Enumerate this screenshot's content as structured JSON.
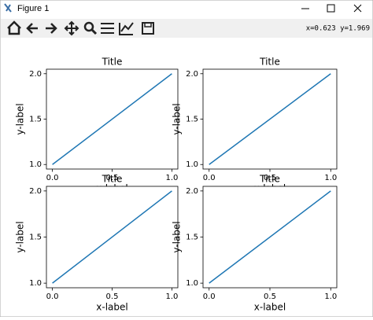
{
  "window": {
    "title": "Figure 1",
    "coordinates": "x=0.623  y=1.969"
  },
  "chart_data": [
    {
      "type": "line",
      "title": "Title",
      "x_label": "x-label",
      "y_label": "y-label",
      "x": [
        0,
        1
      ],
      "values": [
        1,
        2
      ],
      "color": "#1f77b4",
      "xlim": [
        -0.05,
        1.05
      ],
      "ylim": [
        0.95,
        2.05
      ],
      "xticks": [
        {
          "value": 0,
          "label": "0.0"
        },
        {
          "value": 0.5,
          "label": "0.5"
        },
        {
          "value": 1,
          "label": "1.0"
        }
      ],
      "yticks": [
        {
          "value": 1,
          "label": "1.0"
        },
        {
          "value": 1.5,
          "label": "1.5"
        },
        {
          "value": 2,
          "label": "2.0"
        }
      ]
    },
    {
      "type": "line",
      "title": "Title",
      "x_label": "x-label",
      "y_label": "y-label",
      "x": [
        0,
        1
      ],
      "values": [
        1,
        2
      ],
      "color": "#1f77b4",
      "xlim": [
        -0.05,
        1.05
      ],
      "ylim": [
        0.95,
        2.05
      ],
      "xticks": [
        {
          "value": 0,
          "label": "0.0"
        },
        {
          "value": 0.5,
          "label": "0.5"
        },
        {
          "value": 1,
          "label": "1.0"
        }
      ],
      "yticks": [
        {
          "value": 1,
          "label": "1.0"
        },
        {
          "value": 1.5,
          "label": "1.5"
        },
        {
          "value": 2,
          "label": "2.0"
        }
      ]
    },
    {
      "type": "line",
      "title": "Title",
      "x_label": "x-label",
      "y_label": "y-label",
      "x": [
        0,
        1
      ],
      "values": [
        1,
        2
      ],
      "color": "#1f77b4",
      "xlim": [
        -0.05,
        1.05
      ],
      "ylim": [
        0.95,
        2.05
      ],
      "xticks": [
        {
          "value": 0,
          "label": "0.0"
        },
        {
          "value": 0.5,
          "label": "0.5"
        },
        {
          "value": 1,
          "label": "1.0"
        }
      ],
      "yticks": [
        {
          "value": 1,
          "label": "1.0"
        },
        {
          "value": 1.5,
          "label": "1.5"
        },
        {
          "value": 2,
          "label": "2.0"
        }
      ]
    },
    {
      "type": "line",
      "title": "Title",
      "x_label": "x-label",
      "y_label": "y-label",
      "x": [
        0,
        1
      ],
      "values": [
        1,
        2
      ],
      "color": "#1f77b4",
      "xlim": [
        -0.05,
        1.05
      ],
      "ylim": [
        0.95,
        2.05
      ],
      "xticks": [
        {
          "value": 0,
          "label": "0.0"
        },
        {
          "value": 0.5,
          "label": "0.5"
        },
        {
          "value": 1,
          "label": "1.0"
        }
      ],
      "yticks": [
        {
          "value": 1,
          "label": "1.0"
        },
        {
          "value": 1.5,
          "label": "1.5"
        },
        {
          "value": 2,
          "label": "2.0"
        }
      ]
    }
  ]
}
